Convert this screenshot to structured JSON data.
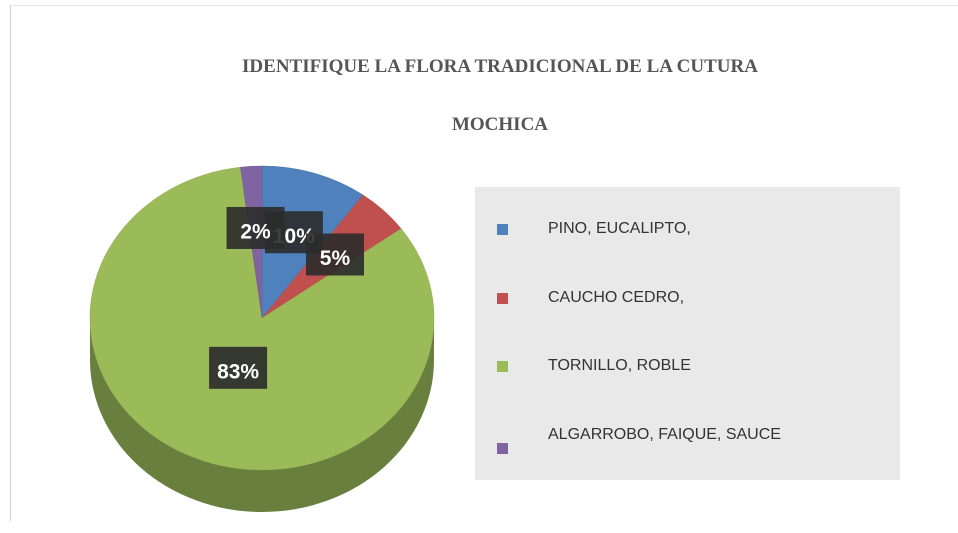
{
  "chart_data": {
    "type": "pie",
    "title": "IDENTIFIQUE LA FLORA TRADICIONAL DE LA CUTURA MOCHICA",
    "categories": [
      "PINO, EUCALIPTO,",
      "CAUCHO CEDRO,",
      "TORNILLO, ROBLE",
      "ALGARROBO, FAIQUE, SAUCE"
    ],
    "values": [
      10,
      5,
      83,
      2
    ],
    "value_labels": [
      "10%",
      "5%",
      "83%",
      "2%"
    ],
    "colors": [
      "#4f81bd",
      "#c0504d",
      "#9bbb59",
      "#8064a2"
    ],
    "legend": "right"
  }
}
